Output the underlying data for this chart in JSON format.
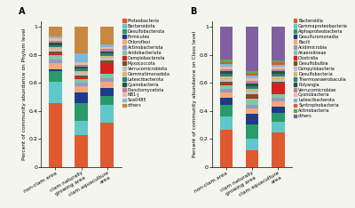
{
  "panel_A": {
    "title": "A",
    "ylabel": "Percent of community abundance on Phylum level",
    "categories": [
      "non-clam area",
      "clam naturally\ngrowing area",
      "clam aquaculture\narea"
    ],
    "legend_labels": [
      "Proteobacteria",
      "Bacteroidota",
      "Desulfobacterota",
      "Firmicutes",
      "Chloroflexi",
      "Actinobacteriota",
      "Acidobacteriota",
      "Camplobacterota",
      "Myxococcota",
      "Verrucomicrobiota",
      "Gemmatimonadota",
      "Latescibacterota",
      "Cyanobacteria",
      "Planctomycetota",
      "NB1-j",
      "Sva0485",
      "others"
    ],
    "colors": [
      "#E05A30",
      "#5FC8C8",
      "#2A9A6A",
      "#1E3A8A",
      "#F2A878",
      "#9898C0",
      "#80C8A8",
      "#D42020",
      "#7A5028",
      "#C0C0C0",
      "#D8B878",
      "#2A8080",
      "#1A5840",
      "#C080A0",
      "#EAB8A8",
      "#80B8D8",
      "#C88840"
    ],
    "values": [
      [
        0.45,
        0.228,
        0.3
      ],
      [
        0.148,
        0.1,
        0.118
      ],
      [
        0.075,
        0.13,
        0.06
      ],
      [
        0.01,
        0.078,
        0.055
      ],
      [
        0.042,
        0.04,
        0.038
      ],
      [
        0.028,
        0.028,
        0.028
      ],
      [
        0.028,
        0.025,
        0.025
      ],
      [
        0.008,
        0.008,
        0.072
      ],
      [
        0.018,
        0.018,
        0.018
      ],
      [
        0.018,
        0.018,
        0.018
      ],
      [
        0.015,
        0.015,
        0.015
      ],
      [
        0.015,
        0.015,
        0.015
      ],
      [
        0.015,
        0.015,
        0.015
      ],
      [
        0.015,
        0.015,
        0.015
      ],
      [
        0.015,
        0.015,
        0.015
      ],
      [
        0.015,
        0.068,
        0.015
      ],
      [
        0.065,
        0.185,
        0.118
      ]
    ]
  },
  "panel_B": {
    "title": "B",
    "ylabel": "Percent of community abundance on Class level",
    "categories": [
      "non-clam area",
      "clam naturally\ngrowing area",
      "clam aquaculture\narea"
    ],
    "legend_labels": [
      "Bacteroidia",
      "Gammaproteobacteria",
      "Alphaproteobacteria",
      "Desulfuromonadia",
      "Bacili",
      "Acidimicrobia",
      "Anaerolineae",
      "Clostridia",
      "Desulfobulbia",
      "Campylobacteria",
      "Desulfobacteria",
      "Thermoanaerobaculia",
      "Polyangia",
      "Verrucomicrobiae",
      "Cyanobacteria",
      "Latescibacterota",
      "Syntrophobacteria",
      "Actinobacteria",
      "others"
    ],
    "colors": [
      "#E05A30",
      "#5FC8C8",
      "#2A9A6A",
      "#1E3A8A",
      "#F2A878",
      "#9898C0",
      "#80C8A8",
      "#D42020",
      "#7A5028",
      "#C0C0C0",
      "#D8B878",
      "#2A8080",
      "#1A5840",
      "#C080A0",
      "#EAB8A8",
      "#80B8D8",
      "#C86040",
      "#60A848",
      "#8060A0"
    ],
    "values": [
      [
        0.262,
        0.115,
        0.248
      ],
      [
        0.092,
        0.075,
        0.075
      ],
      [
        0.08,
        0.095,
        0.065
      ],
      [
        0.048,
        0.075,
        0.048
      ],
      [
        0.038,
        0.038,
        0.038
      ],
      [
        0.025,
        0.025,
        0.025
      ],
      [
        0.025,
        0.038,
        0.025
      ],
      [
        0.008,
        0.008,
        0.075
      ],
      [
        0.018,
        0.025,
        0.018
      ],
      [
        0.018,
        0.018,
        0.018
      ],
      [
        0.018,
        0.018,
        0.018
      ],
      [
        0.018,
        0.018,
        0.018
      ],
      [
        0.018,
        0.018,
        0.018
      ],
      [
        0.018,
        0.018,
        0.018
      ],
      [
        0.018,
        0.018,
        0.018
      ],
      [
        0.015,
        0.015,
        0.015
      ],
      [
        0.015,
        0.015,
        0.015
      ],
      [
        0.015,
        0.015,
        0.015
      ],
      [
        0.23,
        0.3,
        0.24
      ]
    ]
  },
  "fig_width": 4.0,
  "fig_height": 2.34,
  "dpi": 100,
  "bg_color": "#F5F5F0"
}
